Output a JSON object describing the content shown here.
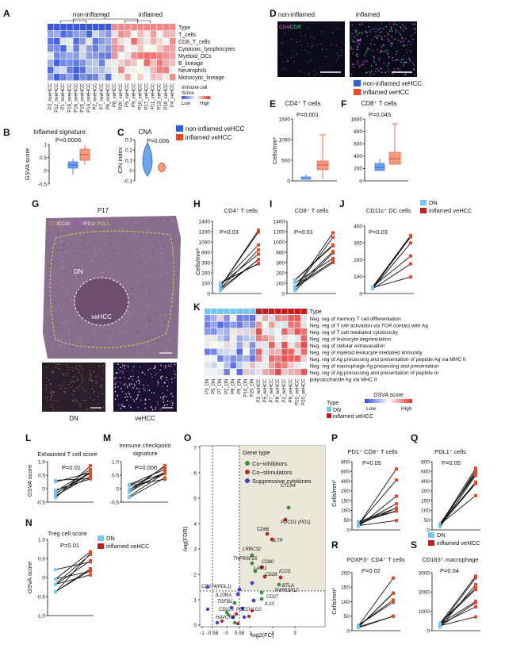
{
  "panel_letters": [
    "A",
    "B",
    "C",
    "D",
    "E",
    "F",
    "G",
    "H",
    "I",
    "J",
    "K",
    "L",
    "M",
    "N",
    "O",
    "P",
    "Q",
    "R",
    "S"
  ],
  "colors": {
    "blue": "#2f5fd9",
    "red": "#e8472a",
    "lightblue": "#74c5ef",
    "darkred": "#c61d1d",
    "green": "#3f8f3f",
    "tissue": "#8a6a8a"
  },
  "A": {
    "group_labels": [
      "non-inflamed",
      "inflamed"
    ],
    "rows": [
      "Type",
      "T_cells",
      "CD8_T_cells",
      "Cytotoxic_lymphocytes",
      "Myeloid_DCs",
      "B_lineage",
      "Neutrophils",
      "Monocytic_lineage"
    ],
    "columns": [
      "P3_nveHCC",
      "P12_nveHCC",
      "P1_nveHCC",
      "P18_nveHCC",
      "P16_nveHCC",
      "P15_nveHCC",
      "P14_nveHCC",
      "P2_nveHCC",
      "P7_nveHCC",
      "P6_nveHCC",
      "P8_veHCC",
      "P20_veHCC",
      "P5_veHCC",
      "P9_veHCC",
      "P10_veHCC",
      "P17_veHCC",
      "P11_veHCC",
      "P13_veHCC",
      "P19_veHCC",
      "P4_veHCC"
    ],
    "legend_title": "Immune cell\nScore",
    "legend_low": "Low",
    "legend_high": "High"
  },
  "B": {
    "title": "Inflamed signature",
    "pvalue": "P=0.0006",
    "ylabel": "GSVA score",
    "yticks": [
      "1",
      "0.5",
      "0",
      "-0.5"
    ]
  },
  "C": {
    "title": "CNA",
    "pvalue": "P=0.006",
    "ylabel": "CIN index",
    "yticks": [
      "0.3",
      "0.2",
      "0.1",
      "0",
      "-0.1"
    ]
  },
  "BC_legend": [
    "non-inflamed veHCC",
    "inflamed veHCC"
  ],
  "D": {
    "labels": [
      "non-inflamed",
      "inflamed"
    ],
    "stain_cd4": "CD4/",
    "stain_cd8": "CD8"
  },
  "DE_legend": [
    "non-inflamed veHCC",
    "inflamed veHCC"
  ],
  "E": {
    "title": "CD4⁺ T cells",
    "pvalue": "P=0.001",
    "ylabel": "Cells/mm²",
    "yticks": [
      "1500",
      "1000",
      "500",
      "0"
    ]
  },
  "F": {
    "title": "CD8⁺ T cells",
    "pvalue": "P=0.045",
    "yticks": [
      "1600",
      "800",
      "600",
      "400",
      "200",
      "0"
    ]
  },
  "G": {
    "sample": "P17",
    "stain_parts": [
      "CD4",
      "/CD8/",
      "CD68",
      "/PD1/",
      "PDL1"
    ],
    "dn_label": "DN",
    "vehcc_label": "veHCC",
    "insets": [
      "DN",
      "veHCC"
    ]
  },
  "H": {
    "title": "CD4⁺ T cells",
    "pvalue": "P=0.03",
    "ylabel": "Cells/mm²",
    "yticks": [
      "1400",
      "1200",
      "1000",
      "800",
      "300",
      "200",
      "100",
      "0"
    ]
  },
  "I": {
    "title": "CD8⁺ T cells",
    "pvalue": "P=0.01",
    "yticks": [
      "1400",
      "1200",
      "1000",
      "800",
      "300",
      "200",
      "100",
      "0"
    ]
  },
  "J": {
    "title": "CD11c⁺ DC cells",
    "pvalue": "P=0.03",
    "yticks": [
      "400",
      "300",
      "200",
      "100",
      "0"
    ]
  },
  "HIJ_legend": [
    "DN",
    "inflamed veHCC"
  ],
  "K": {
    "type_label": "Type",
    "rows": [
      "Neg. reg of memory T cell differentiation",
      "Neg. reg of T cell activation via TCR contact with Ag",
      "Neg. reg of T cell mediated cytotoxicity",
      "Neg. reg of leukocyte degranulation",
      "Neg. reg of cellular extravasation",
      "Neg. reg of myeloid leukocyte mediated immunity",
      "Neg. reg of Ag processing and presentation of peptide Ag via MHC II",
      "Neg. reg of macrophage Ag processing and presentation",
      "Neg. reg of Ag processing and presentation of peptide or",
      "polysaccharide Ag via MHC II"
    ],
    "columns": [
      "P3_DN",
      "P5_DN",
      "P7_DN",
      "P2_DN",
      "P8_DN",
      "P9_DN",
      "P10_DN",
      "P20_DN",
      "P3_veHCC",
      "P5_veHCC",
      "P7_veHCC",
      "P8_veHCC",
      "P2_veHCC",
      "P9_veHCC",
      "P10_veHCC",
      "P20_veHCC"
    ],
    "legend_type": "Type",
    "legend_items": [
      "DN",
      "inflamed veHCC"
    ],
    "gsva_title": "GSVA score",
    "gsva_low": "Low",
    "gsva_high": "High",
    "col_extra": [
      "R1",
      "R2"
    ]
  },
  "L": {
    "title": "Exhausted T cell score",
    "pvalue": "P=0.01",
    "ylabel": "GSVA score",
    "yticks": [
      "1.0",
      "0.5",
      "0",
      "-0.5"
    ]
  },
  "M": {
    "title": "Immune checkpoint\nsignature",
    "pvalue": "P=0.006",
    "yticks": [
      "1.0",
      "0.5",
      "0",
      "-0.5"
    ]
  },
  "N": {
    "title": "Treg cell score",
    "pvalue": "P=0.01",
    "ylabel": "GSVA score",
    "yticks": [
      "1.0",
      "0.5",
      "0",
      "-0.5",
      "-1.0"
    ]
  },
  "LMN_legend": [
    "DN",
    "inflamed veHCC"
  ],
  "O": {
    "xlabel": "log2(FC)",
    "ylabel": "-log(FDR)",
    "xticks": [
      "-1",
      "-0.58",
      "0",
      "0.58",
      "1",
      "2",
      "3"
    ],
    "yticks": [
      "0",
      "1",
      "2",
      "3",
      "4",
      "5",
      "6",
      "7"
    ],
    "legend_title": "Gene type",
    "legend_items": [
      "Co−inhibitors",
      "Co−stimulators",
      "Suppressive cytokines"
    ],
    "genes": [
      "CTLA4",
      "PDCD1 (PD1)",
      "CD86",
      "IL7R",
      "LRRC32",
      "TNFRSF25",
      "CD80",
      "LAIR1",
      "ICOS",
      "CD28",
      "BTLA",
      "CD274(PDL1)",
      "IL10RA",
      "TGFB1",
      "CD226",
      "TNFRSF17",
      "CD27",
      "IL10",
      "HAVCR2",
      "PDCD1LG2"
    ]
  },
  "P": {
    "title": "PD1⁺ CD8⁺ T cells",
    "pvalue": "P=0.05",
    "ylabel": "Cells/mm²",
    "yticks": [
      "800",
      "600",
      "400",
      "200",
      "150",
      "100",
      "50",
      "0"
    ]
  },
  "Q": {
    "title": "PDL1⁺ cells",
    "pvalue": "P=0.05",
    "yticks": [
      "800",
      "600",
      "400",
      "200",
      "150",
      "100",
      "50",
      "0"
    ]
  },
  "PQ_legend": [
    "DN",
    "inflamed veHCC"
  ],
  "R": {
    "title": "FOXP3⁺ CD4⁺ T cells",
    "pvalue": "P=0.02",
    "ylabel": "Cells/mm²",
    "yticks": [
      "200",
      "150",
      "100",
      "50",
      "0"
    ]
  },
  "S": {
    "title": "CD163⁺ macrophage",
    "pvalue": "P=0.04",
    "yticks": [
      "3000",
      "2000",
      "1000",
      "0"
    ]
  }
}
